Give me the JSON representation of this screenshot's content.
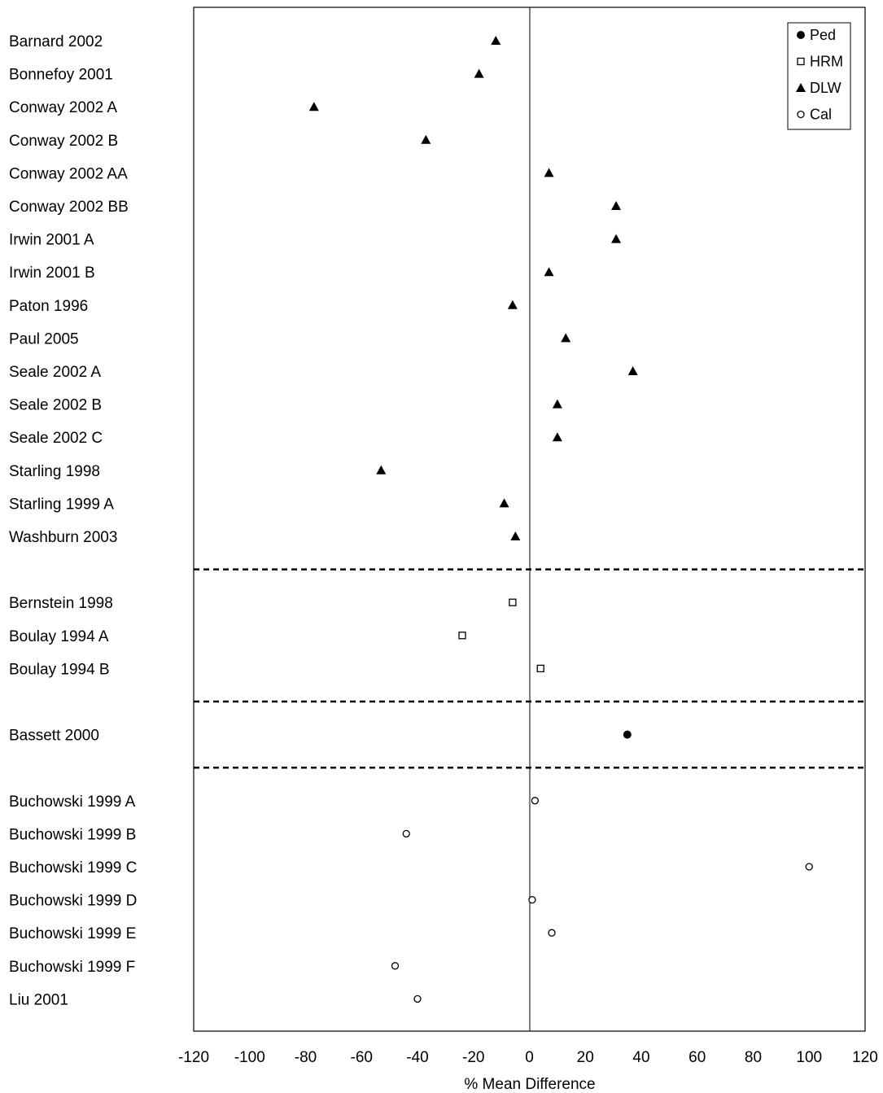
{
  "chart_data": {
    "type": "scatter",
    "xlabel": "% Mean Difference",
    "xlim": [
      -120,
      120
    ],
    "x_ticks": [
      -120,
      -100,
      -80,
      -60,
      -40,
      -20,
      0,
      20,
      40,
      60,
      80,
      100,
      120
    ],
    "grid": false,
    "reference_line_x": 0,
    "legend_position": "top-right",
    "legend": [
      {
        "method": "Ped",
        "label": "Ped",
        "marker": "filled-circle"
      },
      {
        "method": "HRM",
        "label": "HRM",
        "marker": "open-square"
      },
      {
        "method": "DLW",
        "label": "DLW",
        "marker": "filled-triangle"
      },
      {
        "method": "Cal",
        "label": "Cal",
        "marker": "open-circle"
      }
    ],
    "groups": [
      {
        "method": "DLW",
        "points": [
          {
            "study": "Barnard 2002",
            "x": -12
          },
          {
            "study": "Bonnefoy 2001",
            "x": -18
          },
          {
            "study": "Conway 2002 A",
            "x": -77
          },
          {
            "study": "Conway 2002 B",
            "x": -37
          },
          {
            "study": "Conway 2002 AA",
            "x": 7
          },
          {
            "study": "Conway 2002 BB",
            "x": 31
          },
          {
            "study": "Irwin 2001 A",
            "x": 31
          },
          {
            "study": "Irwin 2001 B",
            "x": 7
          },
          {
            "study": "Paton 1996",
            "x": -6
          },
          {
            "study": "Paul 2005",
            "x": 13
          },
          {
            "study": "Seale 2002 A",
            "x": 37
          },
          {
            "study": "Seale 2002 B",
            "x": 10
          },
          {
            "study": "Seale 2002 C",
            "x": 10
          },
          {
            "study": "Starling 1998",
            "x": -53
          },
          {
            "study": "Starling 1999 A",
            "x": -9
          },
          {
            "study": "Washburn 2003",
            "x": -5
          }
        ]
      },
      {
        "method": "HRM",
        "points": [
          {
            "study": "Bernstein 1998",
            "x": -6
          },
          {
            "study": "Boulay 1994 A",
            "x": -24
          },
          {
            "study": "Boulay 1994 B",
            "x": 4
          }
        ]
      },
      {
        "method": "Ped",
        "points": [
          {
            "study": "Bassett 2000",
            "x": 35
          }
        ]
      },
      {
        "method": "Cal",
        "points": [
          {
            "study": "Buchowski 1999 A",
            "x": 2
          },
          {
            "study": "Buchowski 1999 B",
            "x": -44
          },
          {
            "study": "Buchowski 1999 C",
            "x": 100
          },
          {
            "study": "Buchowski 1999 D",
            "x": 1
          },
          {
            "study": "Buchowski 1999 E",
            "x": 8
          },
          {
            "study": "Buchowski 1999 F",
            "x": -48
          },
          {
            "study": "Liu 2001",
            "x": -40
          }
        ]
      }
    ]
  }
}
